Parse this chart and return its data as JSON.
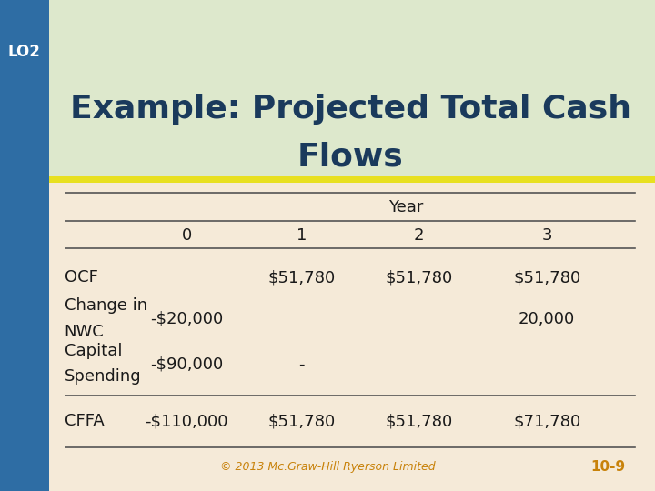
{
  "title_line1": "Example: Projected Total Cash",
  "title_line2": "Flows",
  "lo_label": "LO2",
  "title_color": "#1a3a5c",
  "title_bg_color": "#dde8cc",
  "lo_bg_color": "#2e6da4",
  "yellow_bar_color": "#e8e020",
  "body_bg_color": "#f5ead8",
  "header_label": "Year",
  "col_headers": [
    "0",
    "1",
    "2",
    "3"
  ],
  "rows": [
    {
      "label": "OCF",
      "label2": "",
      "values": [
        "",
        "$51,780",
        "$51,780",
        "$51,780"
      ]
    },
    {
      "label": "Change in",
      "label2": "NWC",
      "values": [
        "-$20,000",
        "",
        "",
        "20,000"
      ]
    },
    {
      "label": "Capital",
      "label2": "Spending",
      "values": [
        "-$90,000",
        "-",
        "",
        ""
      ]
    },
    {
      "label": "CFFA",
      "label2": "",
      "values": [
        "-$110,000",
        "$51,780",
        "$51,780",
        "$71,780"
      ]
    }
  ],
  "footer_text": "© 2013 Mc.Graw-Hill Ryerson Limited",
  "page_num": "10-9",
  "footer_color": "#c8820a",
  "page_color": "#c8820a",
  "data_color": "#1a1a1a",
  "label_color": "#1a1a1a",
  "line_color": "#555555",
  "title_fontsize": 26,
  "header_fontsize": 13,
  "data_fontsize": 13,
  "label_fontsize": 13,
  "footer_fontsize": 9
}
